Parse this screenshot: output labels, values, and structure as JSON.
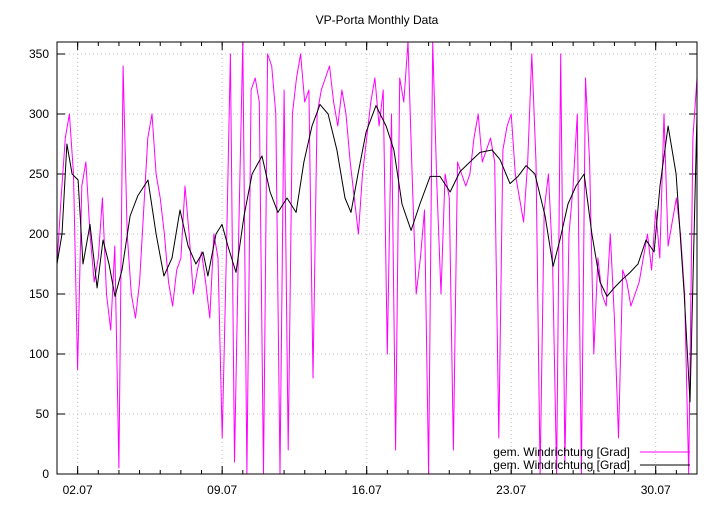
{
  "chart_data": {
    "type": "line",
    "title": "VP-Porta Monthly Data",
    "xlabel": "",
    "ylabel": "",
    "xlim": [
      1,
      32
    ],
    "ylim": [
      0,
      360
    ],
    "grid": true,
    "legend_position": "bottom-right",
    "x_ticks": [
      {
        "value": 2,
        "label": "02.07"
      },
      {
        "value": 9,
        "label": "09.07"
      },
      {
        "value": 16,
        "label": "16.07"
      },
      {
        "value": 23,
        "label": "23.07"
      },
      {
        "value": 30,
        "label": "30.07"
      }
    ],
    "y_ticks": [
      0,
      50,
      100,
      150,
      200,
      250,
      300,
      350
    ],
    "series": [
      {
        "name": "gem. Windrichtung [Grad]",
        "color": "#ff00ff",
        "x_start": 1,
        "x_step": 0.2,
        "values": [
          175,
          230,
          280,
          300,
          250,
          87,
          240,
          260,
          200,
          160,
          180,
          230,
          150,
          120,
          190,
          5,
          340,
          200,
          150,
          130,
          160,
          220,
          280,
          300,
          250,
          230,
          200,
          160,
          140,
          170,
          180,
          240,
          200,
          150,
          170,
          185,
          160,
          130,
          200,
          180,
          30,
          180,
          350,
          10,
          200,
          360,
          0,
          320,
          330,
          310,
          0,
          350,
          340,
          300,
          0,
          320,
          20,
          300,
          330,
          350,
          310,
          320,
          80,
          300,
          320,
          330,
          340,
          310,
          290,
          320,
          300,
          260,
          230,
          200,
          250,
          280,
          310,
          330,
          290,
          320,
          100,
          300,
          20,
          330,
          310,
          360,
          250,
          150,
          180,
          220,
          0,
          360,
          240,
          150,
          250,
          230,
          20,
          260,
          250,
          240,
          250,
          280,
          300,
          260,
          270,
          280,
          260,
          30,
          270,
          290,
          300,
          250,
          230,
          210,
          260,
          350,
          260,
          0,
          220,
          250,
          180,
          0,
          350,
          10,
          200,
          240,
          300,
          0,
          330,
          260,
          100,
          180,
          150,
          140,
          200,
          130,
          30,
          170,
          160,
          140,
          150,
          160,
          180,
          200,
          170,
          220,
          180,
          300,
          190,
          210,
          230,
          200,
          150,
          0,
          280,
          330
        ]
      },
      {
        "name": "gem. Windrichtung [Grad]",
        "color": "#000000",
        "x": [
          1.0,
          1.24,
          1.48,
          1.73,
          2.02,
          2.26,
          2.6,
          2.94,
          3.23,
          3.52,
          3.81,
          4.15,
          4.54,
          4.92,
          5.41,
          5.8,
          6.18,
          6.57,
          6.96,
          7.35,
          7.73,
          8.07,
          8.31,
          8.7,
          8.99,
          9.28,
          9.67,
          10.06,
          10.45,
          10.93,
          11.32,
          11.7,
          12.14,
          12.58,
          12.96,
          13.35,
          13.74,
          14.13,
          14.56,
          14.95,
          15.24,
          15.58,
          15.97,
          16.45,
          16.94,
          17.32,
          17.71,
          18.15,
          18.58,
          19.07,
          19.55,
          20.04,
          20.52,
          21.0,
          21.49,
          22.07,
          22.46,
          22.94,
          23.33,
          23.72,
          24.15,
          24.64,
          25.03,
          25.36,
          25.75,
          26.14,
          26.53,
          26.91,
          27.3,
          27.64,
          27.98,
          28.37,
          28.76,
          29.14,
          29.53,
          29.92,
          30.21,
          30.6,
          30.99,
          31.38,
          31.66,
          32.0
        ],
        "values": [
          175,
          200,
          275,
          250,
          245,
          175,
          208,
          155,
          195,
          175,
          148,
          170,
          215,
          232,
          245,
          200,
          165,
          180,
          220,
          190,
          175,
          185,
          165,
          200,
          208,
          190,
          168,
          215,
          250,
          265,
          235,
          218,
          230,
          218,
          260,
          290,
          308,
          300,
          270,
          230,
          218,
          250,
          285,
          307,
          290,
          270,
          225,
          203,
          225,
          248,
          248,
          235,
          252,
          260,
          268,
          270,
          262,
          242,
          248,
          257,
          250,
          215,
          173,
          195,
          225,
          240,
          250,
          200,
          160,
          148,
          155,
          162,
          168,
          175,
          195,
          185,
          240,
          290,
          250,
          150,
          60,
          300
        ]
      }
    ]
  }
}
